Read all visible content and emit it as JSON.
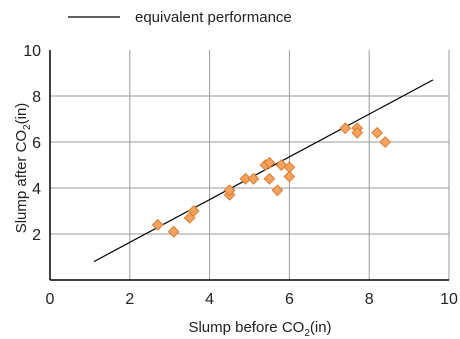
{
  "chart_data": {
    "type": "scatter",
    "xlabel": "Slump before CO",
    "xlabel_sub": "2",
    "xlabel_suffix": "(in)",
    "ylabel": "Slump  after CO",
    "ylabel_sub": "2",
    "ylabel_suffix": "(in)",
    "xlim": [
      0,
      10
    ],
    "ylim": [
      0,
      10
    ],
    "x_ticks": [
      "0",
      "2",
      "4",
      "6",
      "8",
      "10"
    ],
    "y_ticks": [
      "2",
      "4",
      "6",
      "8",
      "10"
    ],
    "grid": true,
    "legend_position": "top",
    "legend": [
      {
        "label": "equivalent performance",
        "type": "line",
        "color": "#000000"
      }
    ],
    "reference_line": {
      "name": "equivalent performance",
      "x": [
        1.1,
        9.6
      ],
      "y": [
        0.8,
        8.7
      ],
      "color": "#000000"
    },
    "series": [
      {
        "marker": "diamond",
        "color": "#F4A261",
        "stroke": "#E07B2A",
        "points": [
          {
            "x": 2.7,
            "y": 2.4
          },
          {
            "x": 3.1,
            "y": 2.1
          },
          {
            "x": 3.5,
            "y": 2.7
          },
          {
            "x": 3.6,
            "y": 3.0
          },
          {
            "x": 4.5,
            "y": 3.7
          },
          {
            "x": 4.5,
            "y": 3.9
          },
          {
            "x": 4.9,
            "y": 4.4
          },
          {
            "x": 5.1,
            "y": 4.4
          },
          {
            "x": 5.4,
            "y": 5.0
          },
          {
            "x": 5.5,
            "y": 5.1
          },
          {
            "x": 5.5,
            "y": 4.4
          },
          {
            "x": 5.7,
            "y": 3.9
          },
          {
            "x": 5.8,
            "y": 5.0
          },
          {
            "x": 6.0,
            "y": 4.9
          },
          {
            "x": 6.0,
            "y": 4.5
          },
          {
            "x": 7.4,
            "y": 6.6
          },
          {
            "x": 7.7,
            "y": 6.6
          },
          {
            "x": 7.7,
            "y": 6.4
          },
          {
            "x": 8.2,
            "y": 6.4
          },
          {
            "x": 8.4,
            "y": 6.0
          }
        ]
      }
    ]
  },
  "colors": {
    "grid": "#9a9a9a",
    "axis": "#000000",
    "marker_fill": "#F4A261",
    "marker_stroke": "#E07B2A"
  }
}
